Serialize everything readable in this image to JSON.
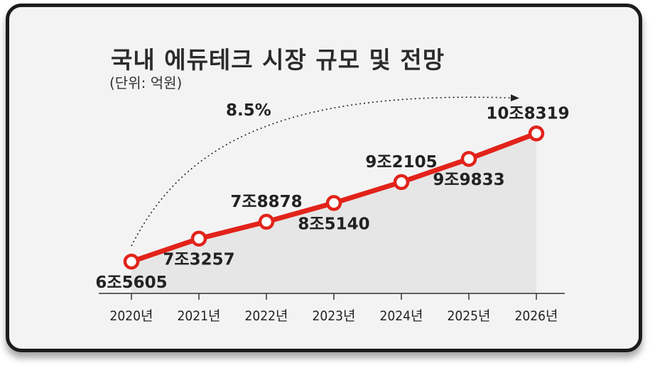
{
  "chart_data": {
    "type": "line",
    "title": "국내 에듀테크 시장 규모 및 전망",
    "subtitle": "(단위: 억원)",
    "growth_annotation": "8.5%",
    "categories": [
      "2020년",
      "2021년",
      "2022년",
      "2023년",
      "2024년",
      "2025년",
      "2026년"
    ],
    "values": [
      65605,
      73257,
      78878,
      85140,
      92105,
      99833,
      108319
    ],
    "data_labels": [
      "6조5605",
      "7조3257",
      "7조8878",
      "8조5140",
      "9조2105",
      "9조9833",
      "10조8319"
    ],
    "ylim": [
      55000,
      115000
    ],
    "grid": false,
    "line_color": "#e2231a",
    "marker_fill": "#ffffff",
    "area_fill": "#e6e6e6"
  }
}
